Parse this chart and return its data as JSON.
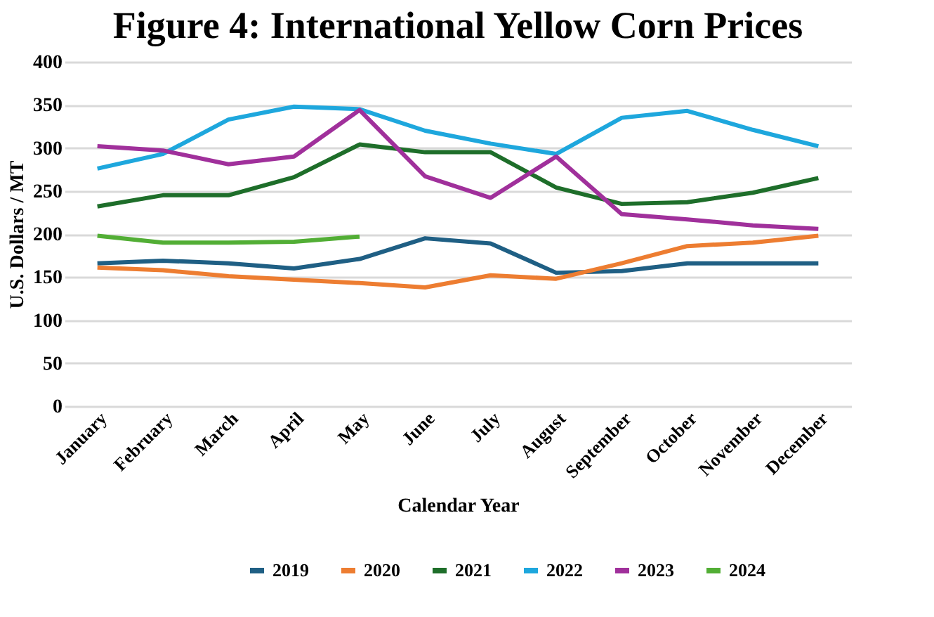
{
  "chart_data": {
    "type": "line",
    "title": "Figure 4: International Yellow Corn Prices",
    "xlabel": "Calendar Year",
    "ylabel": "U.S. Dollars / MT",
    "categories": [
      "January",
      "February",
      "March",
      "April",
      "May",
      "June",
      "July",
      "August",
      "September",
      "October",
      "November",
      "December"
    ],
    "series": [
      {
        "name": "2019",
        "color": "#1f5f84",
        "values": [
          166,
          169,
          166,
          160,
          171,
          195,
          189,
          155,
          157,
          166,
          166,
          166
        ]
      },
      {
        "name": "2020",
        "color": "#ed7d31",
        "values": [
          161,
          158,
          151,
          147,
          143,
          138,
          152,
          148,
          166,
          186,
          190,
          198
        ]
      },
      {
        "name": "2021",
        "color": "#1e6e2a",
        "values": [
          232,
          245,
          245,
          266,
          304,
          295,
          295,
          254,
          235,
          237,
          248,
          265
        ]
      },
      {
        "name": "2022",
        "color": "#1ea7dd",
        "values": [
          276,
          293,
          333,
          348,
          345,
          320,
          305,
          293,
          335,
          343,
          321,
          302
        ]
      },
      {
        "name": "2023",
        "color": "#a0309b",
        "values": [
          302,
          297,
          281,
          290,
          344,
          267,
          242,
          290,
          223,
          217,
          210,
          206
        ]
      },
      {
        "name": "2024",
        "color": "#52ae35",
        "values": [
          198,
          190,
          190,
          191,
          197,
          null,
          null,
          null,
          null,
          null,
          null,
          null
        ]
      }
    ],
    "ylim": [
      0,
      400
    ],
    "yticks": [
      0,
      50,
      100,
      150,
      200,
      250,
      300,
      350,
      400
    ],
    "grid": "y",
    "legend": "bottom",
    "marker": "none",
    "line_style": "solid"
  }
}
